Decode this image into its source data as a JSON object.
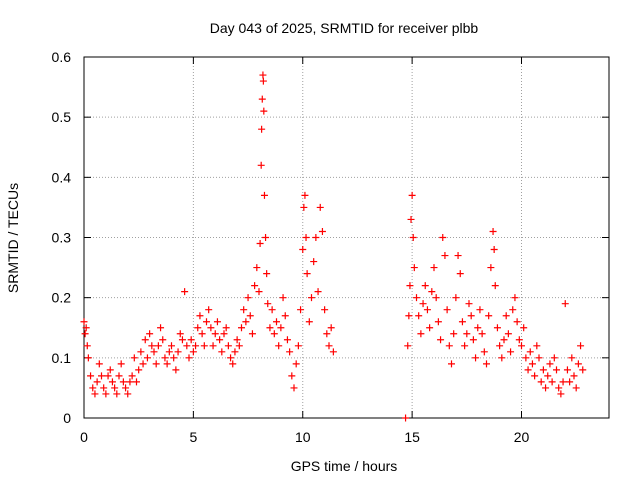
{
  "chart_data": {
    "type": "scatter",
    "title": "Day 043 of 2025, SRMTID for receiver plbb",
    "xlabel": "GPS time / hours",
    "ylabel": "SRMTID / TECUs",
    "xlim": [
      0,
      24
    ],
    "ylim": [
      0,
      0.6
    ],
    "xticks": [
      0,
      5,
      10,
      15,
      20
    ],
    "xtick_labels": [
      "0",
      "5",
      "10",
      "15",
      "20"
    ],
    "yticks": [
      0,
      0.1,
      0.2,
      0.3,
      0.4,
      0.5,
      0.6
    ],
    "ytick_labels": [
      "0",
      "0.1",
      "0.2",
      "0.3",
      "0.4",
      "0.5",
      "0.6"
    ],
    "grid": true,
    "marker": "+",
    "color": "#ff0000",
    "series": [
      {
        "name": "SRMTID",
        "points": [
          [
            0.0,
            0.16
          ],
          [
            0.05,
            0.14
          ],
          [
            0.1,
            0.15
          ],
          [
            0.15,
            0.12
          ],
          [
            0.2,
            0.1
          ],
          [
            0.3,
            0.07
          ],
          [
            0.4,
            0.05
          ],
          [
            0.5,
            0.04
          ],
          [
            0.6,
            0.06
          ],
          [
            0.7,
            0.09
          ],
          [
            0.8,
            0.07
          ],
          [
            0.9,
            0.05
          ],
          [
            1.0,
            0.04
          ],
          [
            1.1,
            0.07
          ],
          [
            1.2,
            0.08
          ],
          [
            1.3,
            0.06
          ],
          [
            1.4,
            0.05
          ],
          [
            1.5,
            0.04
          ],
          [
            1.6,
            0.07
          ],
          [
            1.7,
            0.09
          ],
          [
            1.8,
            0.06
          ],
          [
            1.9,
            0.05
          ],
          [
            2.0,
            0.04
          ],
          [
            2.1,
            0.06
          ],
          [
            2.2,
            0.07
          ],
          [
            2.3,
            0.1
          ],
          [
            2.4,
            0.06
          ],
          [
            2.5,
            0.08
          ],
          [
            2.6,
            0.11
          ],
          [
            2.7,
            0.09
          ],
          [
            2.8,
            0.13
          ],
          [
            2.9,
            0.1
          ],
          [
            3.0,
            0.14
          ],
          [
            3.1,
            0.12
          ],
          [
            3.2,
            0.11
          ],
          [
            3.3,
            0.09
          ],
          [
            3.4,
            0.12
          ],
          [
            3.5,
            0.15
          ],
          [
            3.6,
            0.13
          ],
          [
            3.7,
            0.1
          ],
          [
            3.8,
            0.09
          ],
          [
            3.9,
            0.11
          ],
          [
            4.0,
            0.12
          ],
          [
            4.1,
            0.1
          ],
          [
            4.2,
            0.08
          ],
          [
            4.3,
            0.11
          ],
          [
            4.4,
            0.14
          ],
          [
            4.5,
            0.13
          ],
          [
            4.6,
            0.21
          ],
          [
            4.7,
            0.12
          ],
          [
            4.8,
            0.1
          ],
          [
            4.9,
            0.13
          ],
          [
            5.0,
            0.11
          ],
          [
            5.1,
            0.12
          ],
          [
            5.2,
            0.15
          ],
          [
            5.3,
            0.17
          ],
          [
            5.4,
            0.14
          ],
          [
            5.5,
            0.12
          ],
          [
            5.6,
            0.16
          ],
          [
            5.7,
            0.18
          ],
          [
            5.8,
            0.15
          ],
          [
            5.9,
            0.12
          ],
          [
            6.0,
            0.14
          ],
          [
            6.1,
            0.16
          ],
          [
            6.2,
            0.13
          ],
          [
            6.3,
            0.11
          ],
          [
            6.4,
            0.14
          ],
          [
            6.5,
            0.15
          ],
          [
            6.6,
            0.12
          ],
          [
            6.7,
            0.1
          ],
          [
            6.8,
            0.09
          ],
          [
            6.9,
            0.11
          ],
          [
            7.0,
            0.13
          ],
          [
            7.1,
            0.12
          ],
          [
            7.2,
            0.15
          ],
          [
            7.3,
            0.18
          ],
          [
            7.4,
            0.16
          ],
          [
            7.5,
            0.2
          ],
          [
            7.6,
            0.17
          ],
          [
            7.7,
            0.14
          ],
          [
            7.8,
            0.22
          ],
          [
            7.9,
            0.25
          ],
          [
            8.0,
            0.21
          ],
          [
            8.05,
            0.29
          ],
          [
            8.1,
            0.42
          ],
          [
            8.12,
            0.48
          ],
          [
            8.15,
            0.53
          ],
          [
            8.18,
            0.57
          ],
          [
            8.2,
            0.56
          ],
          [
            8.22,
            0.51
          ],
          [
            8.25,
            0.37
          ],
          [
            8.3,
            0.3
          ],
          [
            8.35,
            0.24
          ],
          [
            8.4,
            0.19
          ],
          [
            8.5,
            0.15
          ],
          [
            8.6,
            0.18
          ],
          [
            8.7,
            0.14
          ],
          [
            8.8,
            0.16
          ],
          [
            8.9,
            0.12
          ],
          [
            9.0,
            0.15
          ],
          [
            9.1,
            0.2
          ],
          [
            9.2,
            0.17
          ],
          [
            9.3,
            0.13
          ],
          [
            9.4,
            0.11
          ],
          [
            9.5,
            0.07
          ],
          [
            9.6,
            0.05
          ],
          [
            9.7,
            0.09
          ],
          [
            9.8,
            0.12
          ],
          [
            9.9,
            0.18
          ],
          [
            10.0,
            0.28
          ],
          [
            10.05,
            0.35
          ],
          [
            10.1,
            0.37
          ],
          [
            10.15,
            0.3
          ],
          [
            10.2,
            0.24
          ],
          [
            10.3,
            0.16
          ],
          [
            10.4,
            0.2
          ],
          [
            10.5,
            0.26
          ],
          [
            10.6,
            0.3
          ],
          [
            10.7,
            0.21
          ],
          [
            10.8,
            0.35
          ],
          [
            10.9,
            0.31
          ],
          [
            11.0,
            0.18
          ],
          [
            11.1,
            0.14
          ],
          [
            11.2,
            0.12
          ],
          [
            11.3,
            0.15
          ],
          [
            11.4,
            0.11
          ],
          [
            14.7,
            0.0
          ],
          [
            14.8,
            0.12
          ],
          [
            14.85,
            0.17
          ],
          [
            14.9,
            0.22
          ],
          [
            14.95,
            0.33
          ],
          [
            15.0,
            0.37
          ],
          [
            15.05,
            0.3
          ],
          [
            15.1,
            0.25
          ],
          [
            15.2,
            0.2
          ],
          [
            15.3,
            0.17
          ],
          [
            15.4,
            0.14
          ],
          [
            15.5,
            0.19
          ],
          [
            15.6,
            0.22
          ],
          [
            15.7,
            0.18
          ],
          [
            15.8,
            0.15
          ],
          [
            15.9,
            0.21
          ],
          [
            16.0,
            0.25
          ],
          [
            16.1,
            0.2
          ],
          [
            16.2,
            0.16
          ],
          [
            16.3,
            0.13
          ],
          [
            16.4,
            0.3
          ],
          [
            16.5,
            0.27
          ],
          [
            16.6,
            0.18
          ],
          [
            16.7,
            0.12
          ],
          [
            16.8,
            0.09
          ],
          [
            16.9,
            0.14
          ],
          [
            17.0,
            0.2
          ],
          [
            17.1,
            0.27
          ],
          [
            17.2,
            0.24
          ],
          [
            17.3,
            0.16
          ],
          [
            17.4,
            0.12
          ],
          [
            17.5,
            0.14
          ],
          [
            17.6,
            0.19
          ],
          [
            17.7,
            0.17
          ],
          [
            17.8,
            0.13
          ],
          [
            17.9,
            0.1
          ],
          [
            18.0,
            0.15
          ],
          [
            18.1,
            0.18
          ],
          [
            18.2,
            0.14
          ],
          [
            18.3,
            0.11
          ],
          [
            18.4,
            0.09
          ],
          [
            18.5,
            0.17
          ],
          [
            18.6,
            0.25
          ],
          [
            18.7,
            0.31
          ],
          [
            18.75,
            0.28
          ],
          [
            18.8,
            0.22
          ],
          [
            18.9,
            0.15
          ],
          [
            19.0,
            0.12
          ],
          [
            19.1,
            0.1
          ],
          [
            19.2,
            0.13
          ],
          [
            19.3,
            0.17
          ],
          [
            19.4,
            0.14
          ],
          [
            19.5,
            0.11
          ],
          [
            19.6,
            0.18
          ],
          [
            19.7,
            0.2
          ],
          [
            19.8,
            0.16
          ],
          [
            19.9,
            0.13
          ],
          [
            20.0,
            0.12
          ],
          [
            20.1,
            0.15
          ],
          [
            20.2,
            0.1
          ],
          [
            20.3,
            0.08
          ],
          [
            20.4,
            0.11
          ],
          [
            20.5,
            0.09
          ],
          [
            20.6,
            0.07
          ],
          [
            20.7,
            0.12
          ],
          [
            20.8,
            0.1
          ],
          [
            20.9,
            0.06
          ],
          [
            21.0,
            0.08
          ],
          [
            21.1,
            0.05
          ],
          [
            21.2,
            0.07
          ],
          [
            21.3,
            0.09
          ],
          [
            21.4,
            0.06
          ],
          [
            21.5,
            0.1
          ],
          [
            21.6,
            0.08
          ],
          [
            21.7,
            0.05
          ],
          [
            21.8,
            0.04
          ],
          [
            21.9,
            0.06
          ],
          [
            22.0,
            0.19
          ],
          [
            22.1,
            0.08
          ],
          [
            22.2,
            0.06
          ],
          [
            22.3,
            0.1
          ],
          [
            22.4,
            0.07
          ],
          [
            22.5,
            0.05
          ],
          [
            22.6,
            0.09
          ],
          [
            22.7,
            0.12
          ],
          [
            22.8,
            0.08
          ]
        ]
      }
    ]
  }
}
